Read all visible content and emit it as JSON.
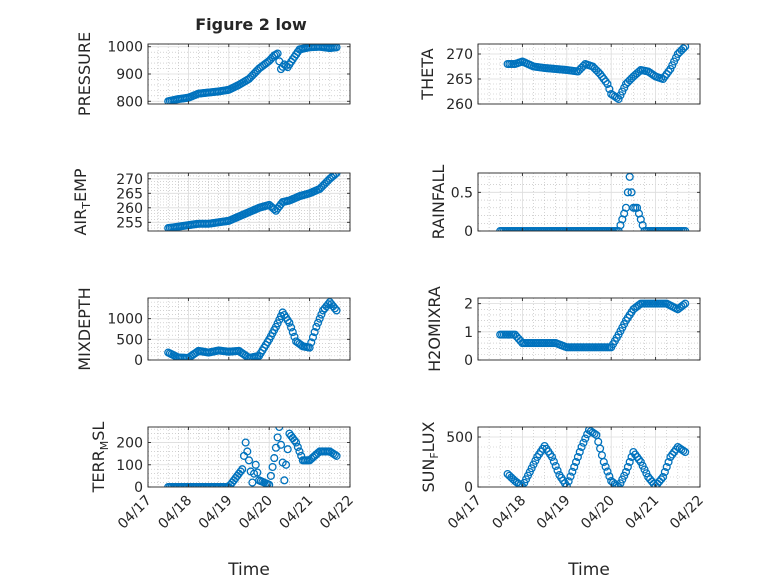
{
  "figure": {
    "title": "Figure 2 low",
    "marker_color": "#0072BD",
    "background": "#ffffff",
    "grid": true,
    "minor_grid": true
  },
  "chart_data": [
    {
      "id": "pressure",
      "type": "scatter",
      "marker": "circle",
      "title": "Figure 2 low",
      "ylabel": "PRESSURE",
      "xlabel": "",
      "xlim": [
        "04/17",
        "04/22"
      ],
      "ylim": [
        790,
        1010
      ],
      "yticks": [
        800,
        900,
        1000
      ],
      "xticks": [
        "04/17",
        "04/18",
        "04/19",
        "04/20",
        "04/21",
        "04/22"
      ],
      "show_xticklabels": false,
      "series": [
        {
          "x": [
            "04/17 12:00",
            "04/17 18:00",
            "04/18 00:00",
            "04/18 06:00",
            "04/18 12:00",
            "04/18 18:00",
            "04/19 00:00",
            "04/19 06:00",
            "04/19 12:00",
            "04/19 18:00",
            "04/20 00:00",
            "04/20 03:00",
            "04/20 05:00",
            "04/20 07:00",
            "04/20 09:00",
            "04/20 11:00",
            "04/20 13:00",
            "04/20 18:00",
            "04/21 00:00",
            "04/21 06:00",
            "04/21 12:00",
            "04/21 16:00"
          ],
          "y": [
            800,
            808,
            813,
            828,
            832,
            836,
            842,
            860,
            882,
            920,
            948,
            968,
            975,
            918,
            935,
            925,
            945,
            990,
            998,
            1000,
            995,
            998
          ]
        }
      ]
    },
    {
      "id": "theta",
      "type": "scatter",
      "marker": "circle",
      "ylabel": "THETA",
      "xlabel": "",
      "xlim": [
        "04/17",
        "04/22"
      ],
      "ylim": [
        260,
        272
      ],
      "yticks": [
        260,
        265,
        270
      ],
      "xticks": [
        "04/17",
        "04/18",
        "04/19",
        "04/20",
        "04/21",
        "04/22"
      ],
      "show_xticklabels": false,
      "series": [
        {
          "x": [
            "04/17 16:00",
            "04/17 20:00",
            "04/18 00:00",
            "04/18 06:00",
            "04/18 12:00",
            "04/18 18:00",
            "04/19 00:00",
            "04/19 06:00",
            "04/19 10:00",
            "04/19 14:00",
            "04/19 18:00",
            "04/19 22:00",
            "04/20 00:00",
            "04/20 04:00",
            "04/20 08:00",
            "04/20 12:00",
            "04/20 16:00",
            "04/20 20:00",
            "04/21 00:00",
            "04/21 04:00",
            "04/21 08:00",
            "04/21 12:00",
            "04/21 16:00"
          ],
          "y": [
            268,
            268,
            268.5,
            267.5,
            267.2,
            267,
            266.8,
            266.5,
            268,
            267.5,
            266,
            264,
            262,
            261,
            264,
            265.5,
            266.8,
            266.5,
            265.5,
            265,
            267,
            270,
            271.5
          ]
        }
      ]
    },
    {
      "id": "air_temp",
      "type": "scatter",
      "marker": "circle",
      "ylabel": "AIR_TEMP",
      "xlabel": "",
      "xlim": [
        "04/17",
        "04/22"
      ],
      "ylim": [
        252,
        272
      ],
      "yticks": [
        255,
        260,
        265,
        270
      ],
      "xticks": [
        "04/17",
        "04/18",
        "04/19",
        "04/20",
        "04/21",
        "04/22"
      ],
      "show_xticklabels": false,
      "series": [
        {
          "x": [
            "04/17 12:00",
            "04/17 18:00",
            "04/18 00:00",
            "04/18 06:00",
            "04/18 12:00",
            "04/18 18:00",
            "04/19 00:00",
            "04/19 06:00",
            "04/19 12:00",
            "04/19 18:00",
            "04/20 00:00",
            "04/20 04:00",
            "04/20 08:00",
            "04/20 12:00",
            "04/20 18:00",
            "04/21 00:00",
            "04/21 06:00",
            "04/21 12:00",
            "04/21 16:00"
          ],
          "y": [
            253,
            253.5,
            254,
            254.5,
            254.5,
            255,
            255.5,
            257,
            258.5,
            260,
            261,
            259,
            262,
            262.5,
            264,
            265,
            266.5,
            270,
            272
          ]
        }
      ]
    },
    {
      "id": "rainfall",
      "type": "scatter",
      "marker": "circle",
      "ylabel": "RAINFALL",
      "xlabel": "",
      "xlim": [
        "04/17",
        "04/22"
      ],
      "ylim": [
        0,
        0.75
      ],
      "yticks": [
        0,
        0.5
      ],
      "xticks": [
        "04/17",
        "04/18",
        "04/19",
        "04/20",
        "04/21",
        "04/22"
      ],
      "show_xticklabels": false,
      "series": [
        {
          "x": [
            "04/17 12:00",
            "04/17 20:00",
            "04/18 04:00",
            "04/18 12:00",
            "04/18 20:00",
            "04/19 04:00",
            "04/19 12:00",
            "04/19 20:00",
            "04/20 04:00",
            "04/20 08:00",
            "04/20 10:00",
            "04/20 12:00",
            "04/20 14:00",
            "04/20 18:00",
            "04/21 00:00",
            "04/21 08:00",
            "04/21 16:00"
          ],
          "y": [
            0,
            0,
            0,
            0,
            0,
            0,
            0,
            0,
            0,
            0.3,
            0.7,
            0.3,
            0.3,
            0,
            0,
            0,
            0
          ]
        }
      ]
    },
    {
      "id": "mixdepth",
      "type": "scatter",
      "marker": "circle",
      "ylabel": "MIXDEPTH",
      "xlabel": "",
      "xlim": [
        "04/17",
        "04/22"
      ],
      "ylim": [
        0,
        1500
      ],
      "yticks": [
        0,
        500,
        1000
      ],
      "xticks": [
        "04/17",
        "04/18",
        "04/19",
        "04/20",
        "04/21",
        "04/22"
      ],
      "show_xticklabels": false,
      "series": [
        {
          "x": [
            "04/17 12:00",
            "04/17 18:00",
            "04/18 00:00",
            "04/18 06:00",
            "04/18 12:00",
            "04/18 18:00",
            "04/19 00:00",
            "04/19 06:00",
            "04/19 12:00",
            "04/19 18:00",
            "04/20 00:00",
            "04/20 04:00",
            "04/20 08:00",
            "04/20 12:00",
            "04/20 16:00",
            "04/20 20:00",
            "04/21 00:00",
            "04/21 04:00",
            "04/21 08:00",
            "04/21 12:00",
            "04/21 16:00"
          ],
          "y": [
            180,
            60,
            50,
            220,
            180,
            230,
            200,
            220,
            50,
            100,
            500,
            800,
            1150,
            900,
            450,
            330,
            300,
            800,
            1200,
            1400,
            1200
          ]
        }
      ]
    },
    {
      "id": "h2omixra",
      "type": "scatter",
      "marker": "circle",
      "ylabel": "H2OMIXRA",
      "xlabel": "",
      "xlim": [
        "04/17",
        "04/22"
      ],
      "ylim": [
        0,
        2.2
      ],
      "yticks": [
        0,
        1,
        2
      ],
      "xticks": [
        "04/17",
        "04/18",
        "04/19",
        "04/20",
        "04/21",
        "04/22"
      ],
      "show_xticklabels": false,
      "series": [
        {
          "x": [
            "04/17 12:00",
            "04/17 20:00",
            "04/18 00:00",
            "04/18 06:00",
            "04/18 12:00",
            "04/18 18:00",
            "04/19 00:00",
            "04/19 06:00",
            "04/19 12:00",
            "04/19 18:00",
            "04/20 00:00",
            "04/20 04:00",
            "04/20 08:00",
            "04/20 12:00",
            "04/20 16:00",
            "04/20 20:00",
            "04/21 00:00",
            "04/21 06:00",
            "04/21 12:00",
            "04/21 16:00"
          ],
          "y": [
            0.9,
            0.9,
            0.6,
            0.6,
            0.6,
            0.6,
            0.45,
            0.45,
            0.45,
            0.45,
            0.45,
            0.9,
            1.4,
            1.8,
            2,
            2,
            2,
            2,
            1.8,
            2
          ]
        }
      ]
    },
    {
      "id": "terr_msl",
      "type": "scatter",
      "marker": "circle",
      "ylabel": "TERR_MSL",
      "xlabel": "Time",
      "xlim": [
        "04/17",
        "04/22"
      ],
      "ylim": [
        0,
        270
      ],
      "yticks": [
        0,
        100,
        200
      ],
      "xticks": [
        "04/17",
        "04/18",
        "04/19",
        "04/20",
        "04/21",
        "04/22"
      ],
      "show_xticklabels": true,
      "series": [
        {
          "x": [
            "04/17 12:00",
            "04/18 00:00",
            "04/18 12:00",
            "04/19 00:00",
            "04/19 08:00",
            "04/19 10:00",
            "04/19 12:00",
            "04/19 14:00",
            "04/19 16:00",
            "04/19 18:00",
            "04/20 00:00",
            "04/20 03:00",
            "04/20 06:00",
            "04/20 09:00",
            "04/20 12:00",
            "04/20 16:00",
            "04/20 20:00",
            "04/21 00:00",
            "04/21 06:00",
            "04/21 12:00",
            "04/21 16:00"
          ],
          "y": [
            0,
            0,
            0,
            0,
            80,
            200,
            120,
            20,
            100,
            30,
            10,
            130,
            270,
            30,
            240,
            200,
            120,
            120,
            160,
            160,
            140
          ]
        }
      ]
    },
    {
      "id": "sun_flux",
      "type": "scatter",
      "marker": "circle",
      "ylabel": "SUN_FLUX",
      "xlabel": "Time",
      "xlim": [
        "04/17",
        "04/22"
      ],
      "ylim": [
        0,
        600
      ],
      "yticks": [
        0,
        500
      ],
      "xticks": [
        "04/17",
        "04/18",
        "04/19",
        "04/20",
        "04/21",
        "04/22"
      ],
      "show_xticklabels": true,
      "series": [
        {
          "x": [
            "04/17 16:00",
            "04/17 20:00",
            "04/18 00:00",
            "04/18 04:00",
            "04/18 08:00",
            "04/18 12:00",
            "04/18 16:00",
            "04/18 20:00",
            "04/19 00:00",
            "04/19 04:00",
            "04/19 08:00",
            "04/19 12:00",
            "04/19 16:00",
            "04/19 20:00",
            "04/20 00:00",
            "04/20 04:00",
            "04/20 08:00",
            "04/20 12:00",
            "04/20 16:00",
            "04/20 20:00",
            "04/21 00:00",
            "04/21 04:00",
            "04/21 08:00",
            "04/21 12:00",
            "04/21 16:00"
          ],
          "y": [
            130,
            60,
            5,
            150,
            300,
            410,
            300,
            120,
            10,
            200,
            400,
            570,
            520,
            250,
            60,
            0,
            150,
            350,
            250,
            100,
            10,
            100,
            300,
            400,
            350
          ]
        }
      ]
    }
  ]
}
